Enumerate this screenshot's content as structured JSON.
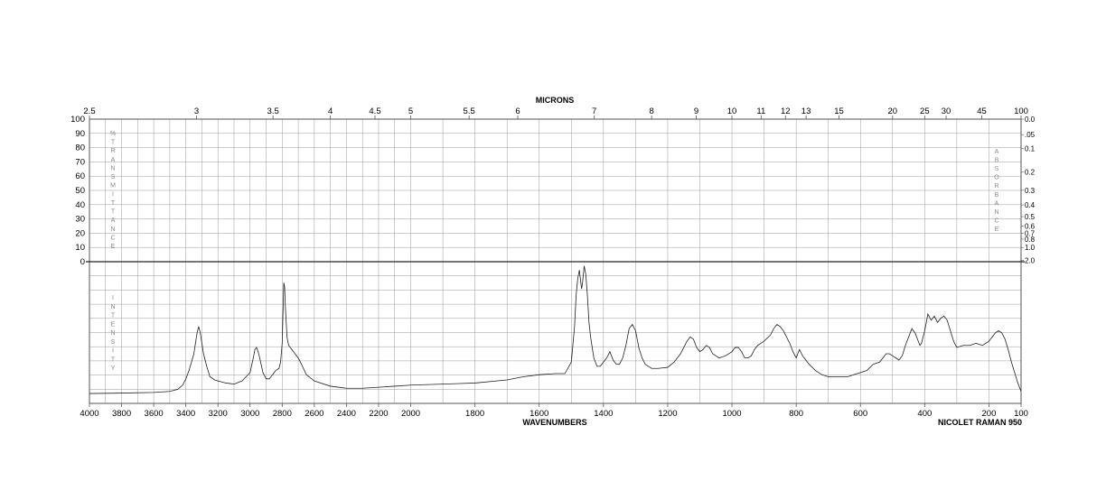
{
  "chart_data": {
    "type": "line",
    "title": "MICRONS",
    "xlabel": "WAVENUMBERS",
    "instrument": "NICOLET RAMAN 950",
    "x_range": [
      4000,
      100
    ],
    "x_ticks": [
      "4000",
      "3800",
      "3600",
      "3400",
      "3200",
      "3000",
      "2800",
      "2600",
      "2400",
      "2200",
      "2000",
      "1800",
      "1600",
      "1400",
      "1200",
      "1000",
      "800",
      "600",
      "400",
      "200",
      "100"
    ],
    "micron_ticks": [
      "2.5",
      "3",
      "3.5",
      "4",
      "4.5",
      "5",
      "5.5",
      "6",
      "7",
      "8",
      "9",
      "10",
      "11",
      "12",
      "13",
      "15",
      "20",
      "25",
      "30",
      "45",
      "100"
    ],
    "transmittance_ticks": [
      "100",
      "90",
      "80",
      "70",
      "60",
      "50",
      "40",
      "30",
      "20",
      "10",
      "0"
    ],
    "absorbance_ticks": [
      "0.0",
      ".05",
      "0.1",
      "0.2",
      "0.3",
      "0.4",
      "0.5",
      "0.6",
      "0.7",
      "0.8",
      "1.0",
      "2.0"
    ],
    "left_vertical_label_top": "%TRANSMITTANCE",
    "left_vertical_label_bottom": "INTENSITY",
    "right_vertical_label": "ABSORBANCE",
    "grid": true,
    "series": [
      {
        "x": [
          4000,
          3800,
          3600,
          3500,
          3450,
          3420,
          3400,
          3380,
          3350,
          3330,
          3320,
          3310,
          3300,
          3290,
          3270,
          3250,
          3220,
          3200,
          3150,
          3100,
          3050,
          3000,
          2980,
          2970,
          2960,
          2950,
          2940,
          2920,
          2900,
          2880,
          2860,
          2840,
          2820,
          2810,
          2800,
          2795,
          2790,
          2785,
          2780,
          2770,
          2760,
          2740,
          2720,
          2700,
          2680,
          2650,
          2600,
          2500,
          2400,
          2300,
          2200,
          2100,
          2000,
          1900,
          1800,
          1700,
          1650,
          1600,
          1550,
          1520,
          1500,
          1490,
          1485,
          1480,
          1475,
          1472,
          1468,
          1465,
          1460,
          1455,
          1450,
          1445,
          1440,
          1430,
          1420,
          1410,
          1400,
          1390,
          1380,
          1370,
          1360,
          1350,
          1340,
          1330,
          1320,
          1310,
          1300,
          1290,
          1280,
          1270,
          1260,
          1250,
          1230,
          1200,
          1180,
          1160,
          1140,
          1130,
          1120,
          1110,
          1100,
          1090,
          1080,
          1070,
          1060,
          1050,
          1040,
          1020,
          1000,
          990,
          980,
          970,
          960,
          950,
          940,
          930,
          920,
          910,
          900,
          880,
          870,
          860,
          850,
          840,
          830,
          820,
          810,
          800,
          790,
          780,
          760,
          740,
          720,
          700,
          680,
          660,
          640,
          620,
          600,
          580,
          560,
          540,
          530,
          520,
          510,
          500,
          490,
          480,
          470,
          460,
          450,
          440,
          430,
          420,
          415,
          410,
          400,
          390,
          380,
          370,
          360,
          350,
          340,
          330,
          320,
          310,
          300,
          280,
          260,
          240,
          220,
          200,
          190,
          180,
          170,
          160,
          150,
          140,
          130,
          120,
          110,
          100
        ],
        "y": [
          3.0,
          3.2,
          3.5,
          4.0,
          5.0,
          7.0,
          10.0,
          14.0,
          22.0,
          32.0,
          35.0,
          32.0,
          27.0,
          22.0,
          16.0,
          11.0,
          9.5,
          9.0,
          8.0,
          7.5,
          9.0,
          13.0,
          20.0,
          24.0,
          25.0,
          23.0,
          20.0,
          13.0,
          10.0,
          10.0,
          12.0,
          14.0,
          15.0,
          18.0,
          27.0,
          42.0,
          56.0,
          54.0,
          44.0,
          30.0,
          26.0,
          24.0,
          22.0,
          20.0,
          17.0,
          12.0,
          9.0,
          6.5,
          5.5,
          5.5,
          6.0,
          6.5,
          7.0,
          7.5,
          8.0,
          9.5,
          11.0,
          12.0,
          12.5,
          12.5,
          18.0,
          35.0,
          50.0,
          58.0,
          62.0,
          58.0,
          53.0,
          56.0,
          64.0,
          60.0,
          50.0,
          37.0,
          30.0,
          20.0,
          16.0,
          16.0,
          18.0,
          20.0,
          23.0,
          19.0,
          17.0,
          17.0,
          20.0,
          26.0,
          34.0,
          36.0,
          33.0,
          25.0,
          20.0,
          17.0,
          16.0,
          15.0,
          15.0,
          15.5,
          18.0,
          22.0,
          28.0,
          30.0,
          29.0,
          25.0,
          23.0,
          24.0,
          26.0,
          25.0,
          22.0,
          21.0,
          20.0,
          21.0,
          23.0,
          25.0,
          25.0,
          23.0,
          20.0,
          20.0,
          21.0,
          24.0,
          26.0,
          27.0,
          28.0,
          31.0,
          34.0,
          36.0,
          35.0,
          33.0,
          30.0,
          27.0,
          23.0,
          20.0,
          24.0,
          21.0,
          17.0,
          14.0,
          12.0,
          11.0,
          11.0,
          11.0,
          11.0,
          12.0,
          13.0,
          14.0,
          17.0,
          18.0,
          20.0,
          22.0,
          22.0,
          21.0,
          20.0,
          19.0,
          21.0,
          26.0,
          30.0,
          34.0,
          32.0,
          28.0,
          26.0,
          27.0,
          33.0,
          41.0,
          38.0,
          40.0,
          37.0,
          39.0,
          40.0,
          38.0,
          33.0,
          28.0,
          25.0,
          26.0,
          26.0,
          27.0,
          26.0,
          28.0,
          30.0,
          32.0,
          33.0,
          32.0,
          29.0,
          24.0,
          18.0,
          13.0,
          8.0,
          4.0
        ]
      }
    ]
  }
}
